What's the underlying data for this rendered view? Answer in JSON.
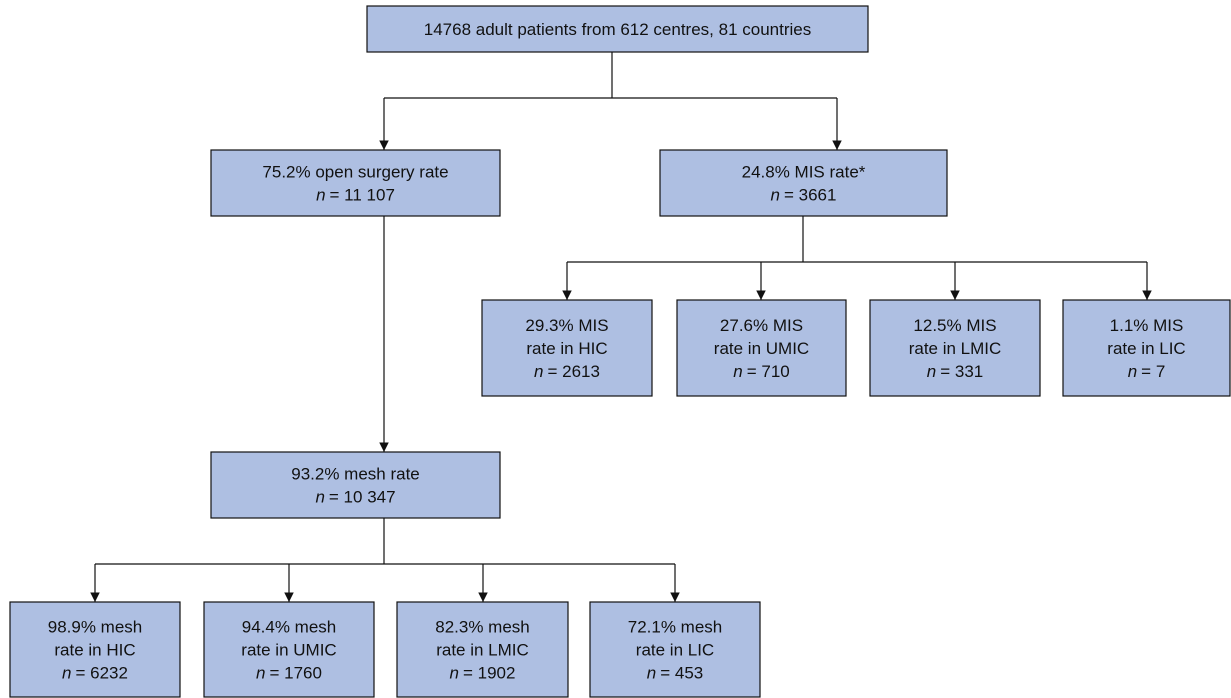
{
  "nodes": [
    {
      "lines": [
        "14768 adult patients from 612 centres, 81 countries"
      ]
    },
    {
      "lines": [
        "75.2% open surgery rate"
      ],
      "count_var": "n",
      "count": "= 11 107"
    },
    {
      "lines": [
        "24.8% MIS rate*"
      ],
      "count_var": "n",
      "count": "= 3661"
    },
    {
      "lines": [
        "29.3% MIS",
        "rate in HIC"
      ],
      "count_var": "n",
      "count": "= 2613"
    },
    {
      "lines": [
        "27.6% MIS",
        "rate in UMIC"
      ],
      "count_var": "n",
      "count": "= 710"
    },
    {
      "lines": [
        "12.5% MIS",
        "rate in LMIC"
      ],
      "count_var": "n",
      "count": "= 331"
    },
    {
      "lines": [
        "1.1% MIS",
        "rate in LIC"
      ],
      "count_var": "n",
      "count": "= 7"
    },
    {
      "lines": [
        "93.2% mesh rate"
      ],
      "count_var": "n",
      "count": "= 10 347"
    },
    {
      "lines": [
        "98.9% mesh",
        "rate in HIC"
      ],
      "count_var": "n",
      "count": "= 6232"
    },
    {
      "lines": [
        "94.4% mesh",
        "rate in UMIC"
      ],
      "count_var": "n",
      "count": "= 1760"
    },
    {
      "lines": [
        "82.3% mesh",
        "rate in LMIC"
      ],
      "count_var": "n",
      "count": "= 1902"
    },
    {
      "lines": [
        "72.1% mesh",
        "rate in LIC"
      ],
      "count_var": "n",
      "count": "= 453"
    }
  ]
}
